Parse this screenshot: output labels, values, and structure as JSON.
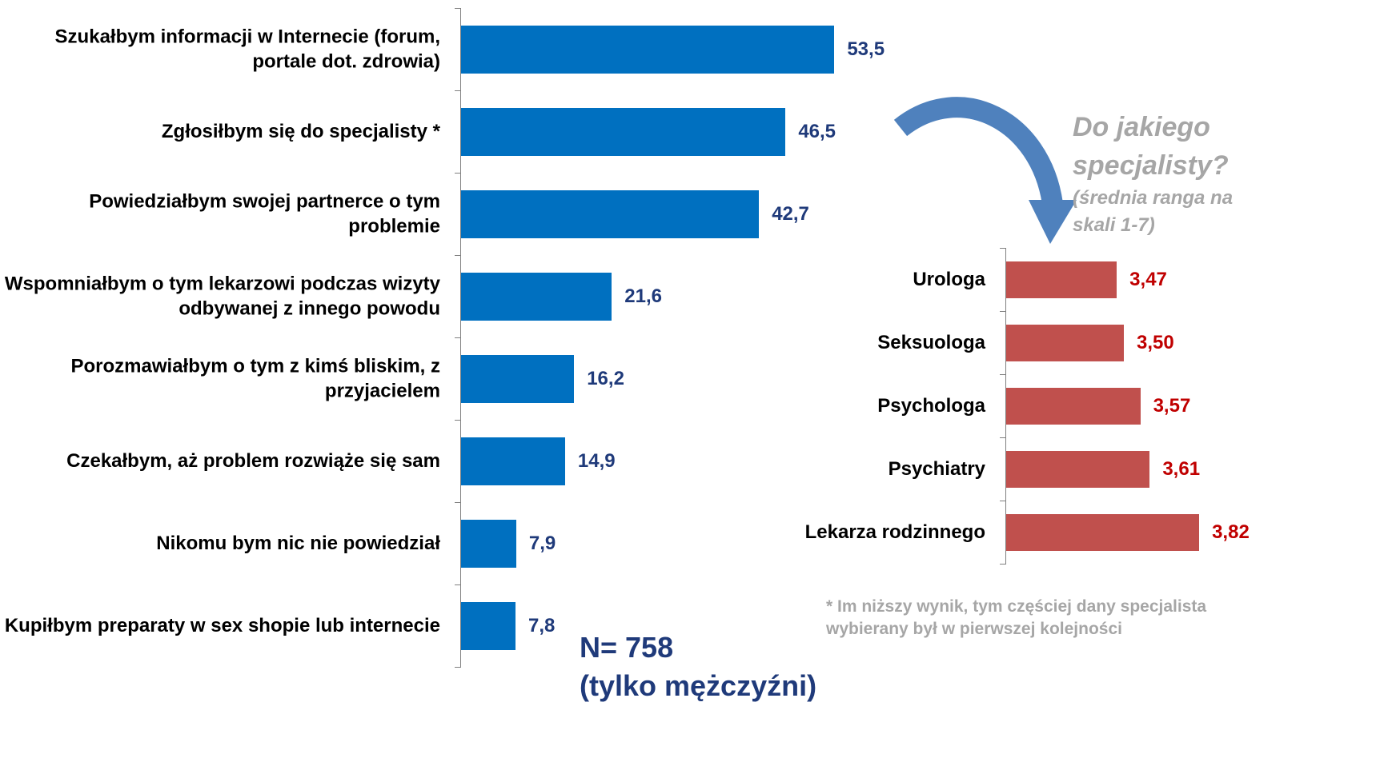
{
  "chart_data": [
    {
      "type": "bar",
      "orientation": "horizontal",
      "categories": [
        "Szukałbym informacji w Internecie (forum, portale dot. zdrowia)",
        "Zgłosiłbym się do specjalisty *",
        "Powiedziałbym swojej partnerce o tym problemie",
        "Wspomniałbym o tym lekarzowi podczas wizyty odbywanej z innego powodu",
        "Porozmawiałbym o tym z kimś bliskim, z przyjacielem",
        "Czekałbym, aż problem rozwiąże się sam",
        "Nikomu bym nic nie powiedział",
        "Kupiłbym preparaty w sex shopie lub internecie"
      ],
      "values": [
        53.5,
        46.5,
        42.7,
        21.6,
        16.2,
        14.9,
        7.9,
        7.8
      ],
      "value_labels": [
        "53,5",
        "46,5",
        "42,7",
        "21,6",
        "16,2",
        "14,9",
        "7,9",
        "7,8"
      ],
      "color": "#0070c0",
      "value_label_color": "#1f3a7a",
      "xlim": [
        0,
        60
      ]
    },
    {
      "type": "bar",
      "orientation": "horizontal",
      "title": "Do jakiego specjalisty?",
      "subtitle": "(średnia ranga na skali 1-7)",
      "categories": [
        "Urologa",
        "Seksuologa",
        "Psychologa",
        "Psychiatry",
        "Lekarza rodzinnego"
      ],
      "values": [
        3.47,
        3.5,
        3.57,
        3.61,
        3.82
      ],
      "value_labels": [
        "3,47",
        "3,50",
        "3,57",
        "3,61",
        "3,82"
      ],
      "color": "#c0504d",
      "value_label_color": "#c00000",
      "xlim": [
        3,
        4
      ],
      "footnote": [
        "* Im niższy wynik, tym częściej dany specjalista",
        "wybierany był w pierwszej kolejności"
      ]
    }
  ],
  "sample_note": [
    "N= 758",
    "(tylko mężczyźni)"
  ]
}
